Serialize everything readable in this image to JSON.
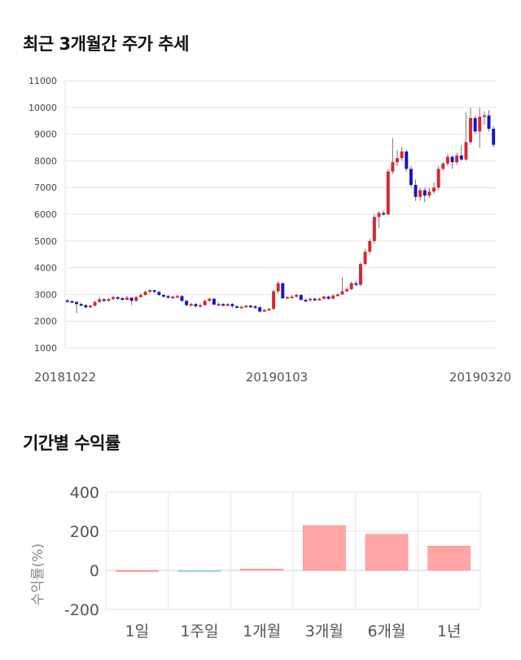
{
  "sections": {
    "price_title": "최근 3개월간 주가 추세",
    "return_title": "기간별 수익률"
  },
  "colors": {
    "up": "#d9262b",
    "down": "#1515c8",
    "bar_positive": "#ffa5a5",
    "bar_negative": "#9fd8e0",
    "grid": "#e6e6e6"
  },
  "chart_data": [
    {
      "type": "candlestick",
      "title": "최근 3개월간 주가 추세",
      "ylim": [
        1000,
        11000
      ],
      "yticks": [
        1000,
        2000,
        3000,
        4000,
        5000,
        6000,
        7000,
        8000,
        9000,
        10000,
        11000
      ],
      "xtick_labels": [
        "20181022",
        "20190103",
        "20190320"
      ],
      "candles": [
        [
          2780,
          2750,
          2810,
          2720
        ],
        [
          2750,
          2720,
          2790,
          2690
        ],
        [
          2720,
          2640,
          2760,
          2300
        ],
        [
          2640,
          2600,
          2700,
          2560
        ],
        [
          2600,
          2520,
          2650,
          2480
        ],
        [
          2520,
          2580,
          2620,
          2480
        ],
        [
          2580,
          2720,
          2760,
          2550
        ],
        [
          2720,
          2820,
          2900,
          2700
        ],
        [
          2820,
          2760,
          2860,
          2700
        ],
        [
          2760,
          2830,
          2880,
          2740
        ],
        [
          2830,
          2900,
          2960,
          2800
        ],
        [
          2900,
          2860,
          2940,
          2800
        ],
        [
          2860,
          2800,
          2900,
          2760
        ],
        [
          2800,
          2880,
          2950,
          2780
        ],
        [
          2880,
          2760,
          2900,
          2600
        ],
        [
          2760,
          2900,
          2950,
          2730
        ],
        [
          2900,
          2980,
          3060,
          2880
        ],
        [
          2980,
          3100,
          3140,
          2940
        ],
        [
          3100,
          3160,
          3200,
          3040
        ],
        [
          3160,
          3100,
          3180,
          3040
        ],
        [
          3100,
          2980,
          3120,
          2940
        ],
        [
          2980,
          2940,
          3020,
          2880
        ],
        [
          2940,
          2880,
          2980,
          2840
        ],
        [
          2880,
          2920,
          2960,
          2840
        ],
        [
          2920,
          2940,
          3000,
          2880
        ],
        [
          2940,
          2760,
          2980,
          2720
        ],
        [
          2760,
          2600,
          2800,
          2560
        ],
        [
          2600,
          2640,
          2700,
          2560
        ],
        [
          2640,
          2560,
          2680,
          2500
        ],
        [
          2560,
          2600,
          2660,
          2520
        ],
        [
          2600,
          2760,
          2800,
          2580
        ],
        [
          2760,
          2840,
          2880,
          2720
        ],
        [
          2840,
          2620,
          2860,
          2600
        ],
        [
          2620,
          2640,
          2700,
          2580
        ],
        [
          2640,
          2600,
          2680,
          2560
        ],
        [
          2600,
          2640,
          2680,
          2560
        ],
        [
          2640,
          2560,
          2680,
          2500
        ],
        [
          2560,
          2520,
          2600,
          2480
        ],
        [
          2520,
          2540,
          2580,
          2480
        ],
        [
          2540,
          2580,
          2600,
          2500
        ],
        [
          2580,
          2560,
          2620,
          2500
        ],
        [
          2560,
          2520,
          2600,
          2460
        ],
        [
          2520,
          2360,
          2560,
          2320
        ],
        [
          2360,
          2420,
          2460,
          2340
        ],
        [
          2420,
          2460,
          2500,
          2400
        ],
        [
          2460,
          3120,
          3200,
          2440
        ],
        [
          3120,
          3420,
          3500,
          3040
        ],
        [
          3420,
          2860,
          3440,
          2820
        ],
        [
          2860,
          2900,
          2940,
          2840
        ],
        [
          2900,
          2920,
          2980,
          2860
        ],
        [
          2920,
          2980,
          3040,
          2880
        ],
        [
          2980,
          2800,
          3020,
          2760
        ],
        [
          2800,
          2780,
          2840,
          2720
        ],
        [
          2780,
          2840,
          2880,
          2740
        ],
        [
          2840,
          2820,
          2880,
          2760
        ],
        [
          2820,
          2840,
          2880,
          2780
        ],
        [
          2840,
          2920,
          2960,
          2800
        ],
        [
          2920,
          2840,
          2960,
          2800
        ],
        [
          2840,
          2960,
          3000,
          2820
        ],
        [
          2960,
          3000,
          3060,
          2920
        ],
        [
          3000,
          3120,
          3640,
          2980
        ],
        [
          3120,
          3200,
          3260,
          3080
        ],
        [
          3200,
          3420,
          3480,
          3160
        ],
        [
          3420,
          3360,
          3520,
          3300
        ],
        [
          3360,
          4140,
          4200,
          3320
        ],
        [
          4140,
          4600,
          4700,
          4060
        ],
        [
          4600,
          5000,
          5100,
          4500
        ],
        [
          5000,
          5900,
          6000,
          4900
        ],
        [
          5900,
          6050,
          6120,
          5500
        ],
        [
          6050,
          6000,
          6150,
          5950
        ],
        [
          6000,
          7600,
          7700,
          5980
        ],
        [
          7600,
          7950,
          8850,
          7500
        ],
        [
          7950,
          8100,
          8400,
          7800
        ],
        [
          8100,
          8350,
          8500,
          8000
        ],
        [
          8350,
          7700,
          8400,
          7600
        ],
        [
          7700,
          7100,
          7800,
          7000
        ],
        [
          7100,
          6650,
          7300,
          6500
        ],
        [
          6650,
          6900,
          7000,
          6500
        ],
        [
          6900,
          6700,
          7000,
          6450
        ],
        [
          6700,
          6850,
          7000,
          6600
        ],
        [
          6850,
          7000,
          7200,
          6750
        ],
        [
          7000,
          7700,
          7800,
          6900
        ],
        [
          7700,
          7900,
          7950,
          7600
        ],
        [
          7900,
          8150,
          8250,
          7800
        ],
        [
          8150,
          7950,
          8200,
          7700
        ],
        [
          7950,
          8200,
          8300,
          7850
        ],
        [
          8200,
          8050,
          8600,
          8000
        ],
        [
          8050,
          8700,
          9800,
          8000
        ],
        [
          8700,
          9600,
          10000,
          8600
        ],
        [
          9600,
          9100,
          9700,
          9000
        ],
        [
          9100,
          9650,
          10000,
          8500
        ],
        [
          9650,
          9700,
          9850,
          9350
        ],
        [
          9700,
          9200,
          9900,
          9100
        ],
        [
          9200,
          8600,
          9300,
          8500
        ]
      ]
    },
    {
      "type": "bar",
      "title": "기간별 수익률",
      "ylabel": "수익률(%)",
      "ylim": [
        -200,
        400
      ],
      "yticks": [
        400,
        200,
        0,
        -200
      ],
      "categories": [
        "1일",
        "1주일",
        "1개월",
        "3개월",
        "6개월",
        "1년"
      ],
      "values": [
        0,
        -3,
        7,
        229,
        184,
        124
      ]
    }
  ]
}
